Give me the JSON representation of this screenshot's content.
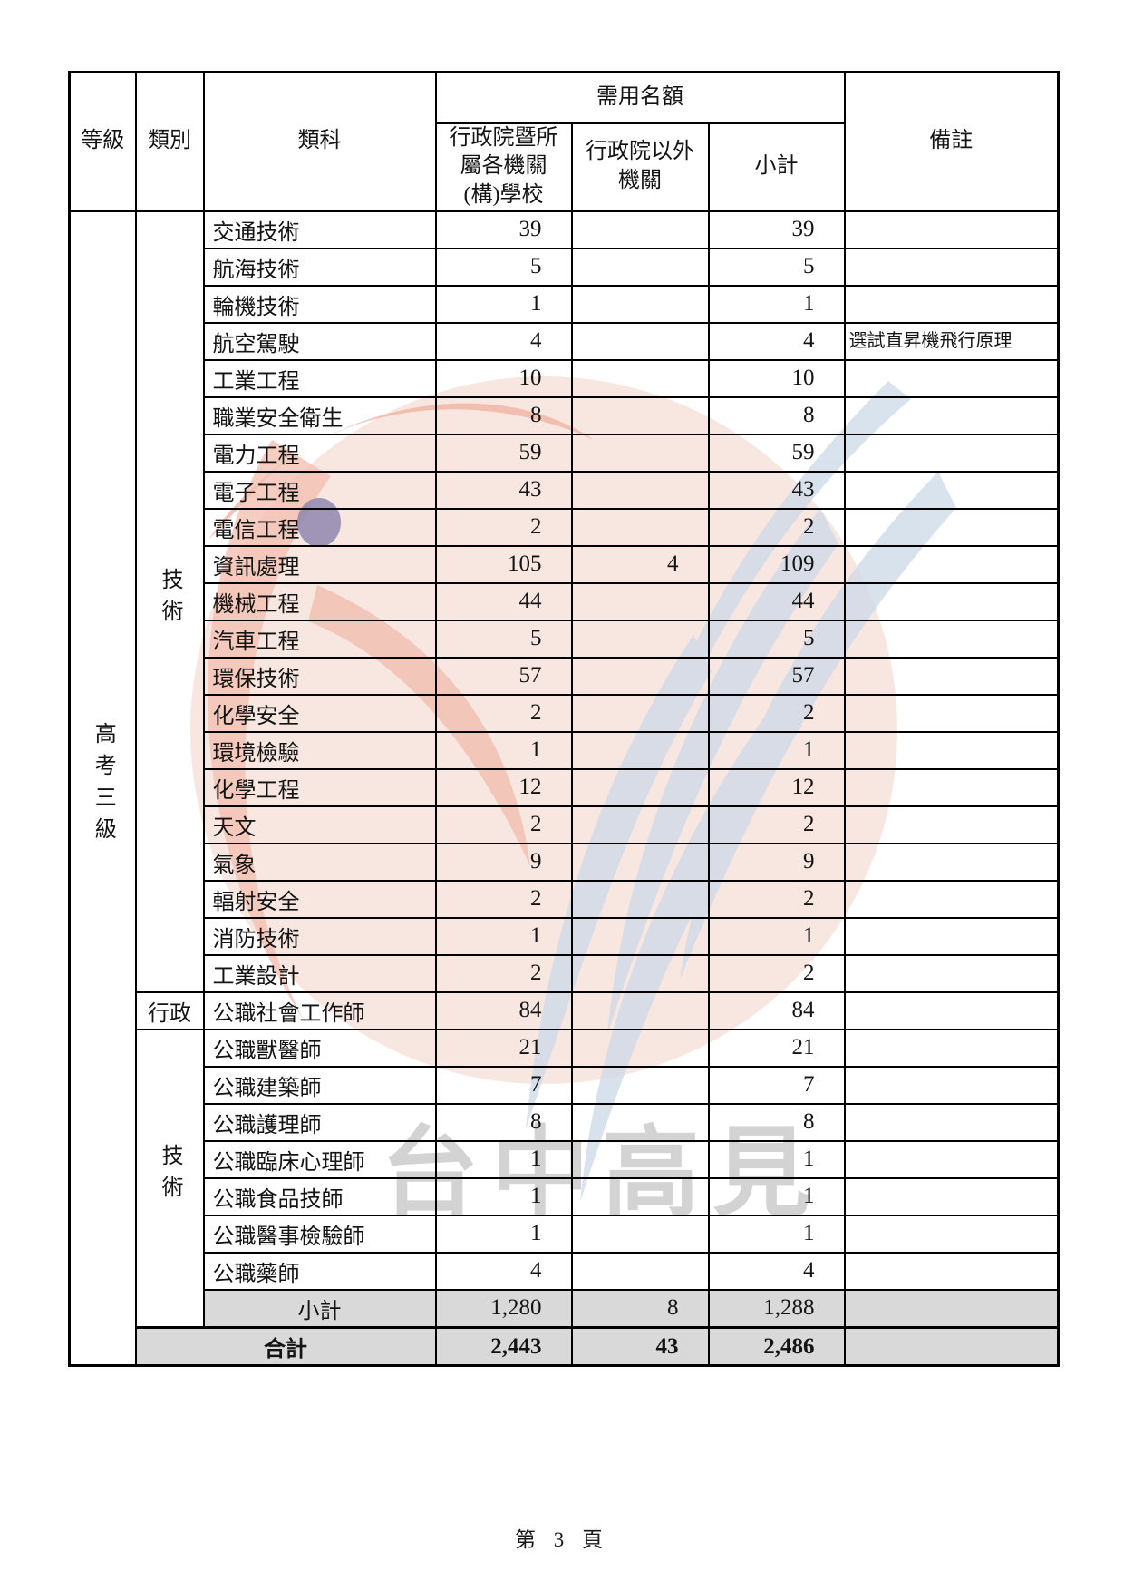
{
  "page": {
    "footer": "第 3 頁"
  },
  "watermark": {
    "text": "台中高見"
  },
  "table": {
    "headers": {
      "level": "等級",
      "category": "類別",
      "class": "類科",
      "quota_group": "需用名額",
      "col_executive": "行政院暨所\n屬各機關\n(構)學校",
      "col_non_executive": "行政院以外\n機關",
      "col_subtotal": "小計",
      "remarks": "備註"
    },
    "level_label": "高考三級",
    "groups": [
      {
        "label": "技術",
        "vertical": true,
        "rows": [
          {
            "name": "交通技術",
            "executive": "39",
            "non_executive": "",
            "subtotal": "39",
            "remark": ""
          },
          {
            "name": "航海技術",
            "executive": "5",
            "non_executive": "",
            "subtotal": "5",
            "remark": ""
          },
          {
            "name": "輪機技術",
            "executive": "1",
            "non_executive": "",
            "subtotal": "1",
            "remark": ""
          },
          {
            "name": "航空駕駛",
            "executive": "4",
            "non_executive": "",
            "subtotal": "4",
            "remark": "選試直昇機飛行原理"
          },
          {
            "name": "工業工程",
            "executive": "10",
            "non_executive": "",
            "subtotal": "10",
            "remark": ""
          },
          {
            "name": "職業安全衛生",
            "executive": "8",
            "non_executive": "",
            "subtotal": "8",
            "remark": ""
          },
          {
            "name": "電力工程",
            "executive": "59",
            "non_executive": "",
            "subtotal": "59",
            "remark": ""
          },
          {
            "name": "電子工程",
            "executive": "43",
            "non_executive": "",
            "subtotal": "43",
            "remark": ""
          },
          {
            "name": "電信工程",
            "executive": "2",
            "non_executive": "",
            "subtotal": "2",
            "remark": ""
          },
          {
            "name": "資訊處理",
            "executive": "105",
            "non_executive": "4",
            "subtotal": "109",
            "remark": ""
          },
          {
            "name": "機械工程",
            "executive": "44",
            "non_executive": "",
            "subtotal": "44",
            "remark": ""
          },
          {
            "name": "汽車工程",
            "executive": "5",
            "non_executive": "",
            "subtotal": "5",
            "remark": ""
          },
          {
            "name": "環保技術",
            "executive": "57",
            "non_executive": "",
            "subtotal": "57",
            "remark": ""
          },
          {
            "name": "化學安全",
            "executive": "2",
            "non_executive": "",
            "subtotal": "2",
            "remark": ""
          },
          {
            "name": "環境檢驗",
            "executive": "1",
            "non_executive": "",
            "subtotal": "1",
            "remark": ""
          },
          {
            "name": "化學工程",
            "executive": "12",
            "non_executive": "",
            "subtotal": "12",
            "remark": ""
          },
          {
            "name": "天文",
            "executive": "2",
            "non_executive": "",
            "subtotal": "2",
            "remark": ""
          },
          {
            "name": "氣象",
            "executive": "9",
            "non_executive": "",
            "subtotal": "9",
            "remark": ""
          },
          {
            "name": "輻射安全",
            "executive": "2",
            "non_executive": "",
            "subtotal": "2",
            "remark": ""
          },
          {
            "name": "消防技術",
            "executive": "1",
            "non_executive": "",
            "subtotal": "1",
            "remark": ""
          },
          {
            "name": "工業設計",
            "executive": "2",
            "non_executive": "",
            "subtotal": "2",
            "remark": ""
          }
        ]
      },
      {
        "label": "行政",
        "vertical": false,
        "rows": [
          {
            "name": "公職社會工作師",
            "executive": "84",
            "non_executive": "",
            "subtotal": "84",
            "remark": ""
          }
        ]
      },
      {
        "label": "技術",
        "vertical": true,
        "rows": [
          {
            "name": "公職獸醫師",
            "executive": "21",
            "non_executive": "",
            "subtotal": "21",
            "remark": ""
          },
          {
            "name": "公職建築師",
            "executive": "7",
            "non_executive": "",
            "subtotal": "7",
            "remark": ""
          },
          {
            "name": "公職護理師",
            "executive": "8",
            "non_executive": "",
            "subtotal": "8",
            "remark": ""
          },
          {
            "name": "公職臨床心理師",
            "executive": "1",
            "non_executive": "",
            "subtotal": "1",
            "remark": ""
          },
          {
            "name": "公職食品技師",
            "executive": "1",
            "non_executive": "",
            "subtotal": "1",
            "remark": ""
          },
          {
            "name": "公職醫事檢驗師",
            "executive": "1",
            "non_executive": "",
            "subtotal": "1",
            "remark": ""
          },
          {
            "name": "公職藥師",
            "executive": "4",
            "non_executive": "",
            "subtotal": "4",
            "remark": ""
          }
        ]
      }
    ],
    "subtotal_row": {
      "label": "小計",
      "executive": "1,280",
      "non_executive": "8",
      "subtotal": "1,288",
      "remark": ""
    },
    "total_row": {
      "label": "合計",
      "executive": "2,443",
      "non_executive": "43",
      "subtotal": "2,486",
      "remark": ""
    },
    "colors": {
      "shaded_row": "#d9d9d9",
      "border": "#000000"
    }
  }
}
